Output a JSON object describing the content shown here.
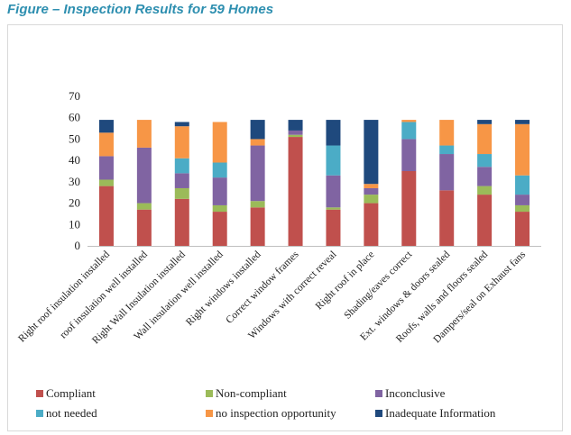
{
  "figure_title": "Figure – Inspection Results for 59 Homes",
  "chart_data": {
    "type": "bar",
    "stacked": true,
    "title": "",
    "xlabel": "",
    "ylabel": "",
    "ylim": [
      0,
      70
    ],
    "yticks": [
      0,
      10,
      20,
      30,
      40,
      50,
      60,
      70
    ],
    "grid": false,
    "legend_position": "bottom",
    "categories": [
      "Right roof insulation installed",
      "roof insulation well installed",
      "Right Wall Insulation installed",
      "Wall insulation well installed",
      "Right windows installed",
      "Correct window frames",
      "Windows with correct reveal",
      "Right roof in place",
      "Shading/eaves correct",
      "Ext. windows & doors sealed",
      "Roofs, walls and floors sealed",
      "Dampers/seal on Exhaust fans"
    ],
    "series": [
      {
        "name": "Compliant",
        "color": "#c0504d",
        "values": [
          28,
          17,
          22,
          16,
          18,
          51,
          17,
          20,
          35,
          26,
          24,
          16
        ]
      },
      {
        "name": "Non-compliant",
        "color": "#9bbb59",
        "values": [
          3,
          3,
          5,
          3,
          3,
          1,
          1,
          4,
          0,
          0,
          4,
          3
        ]
      },
      {
        "name": "Inconclusive",
        "color": "#8064a2",
        "values": [
          11,
          26,
          7,
          13,
          26,
          2,
          15,
          3,
          15,
          17,
          9,
          5
        ]
      },
      {
        "name": "not needed",
        "color": "#4bacc6",
        "values": [
          0,
          0,
          7,
          7,
          0,
          0,
          14,
          0,
          8,
          4,
          6,
          9
        ]
      },
      {
        "name": "no inspection opportunity",
        "color": "#f79646",
        "values": [
          11,
          13,
          15,
          19,
          3,
          0,
          0,
          2,
          1,
          12,
          14,
          24
        ]
      },
      {
        "name": "Inadequate Information",
        "color": "#1f497d",
        "values": [
          6,
          0,
          2,
          0,
          9,
          5,
          12,
          30,
          0,
          0,
          2,
          2
        ]
      }
    ]
  }
}
